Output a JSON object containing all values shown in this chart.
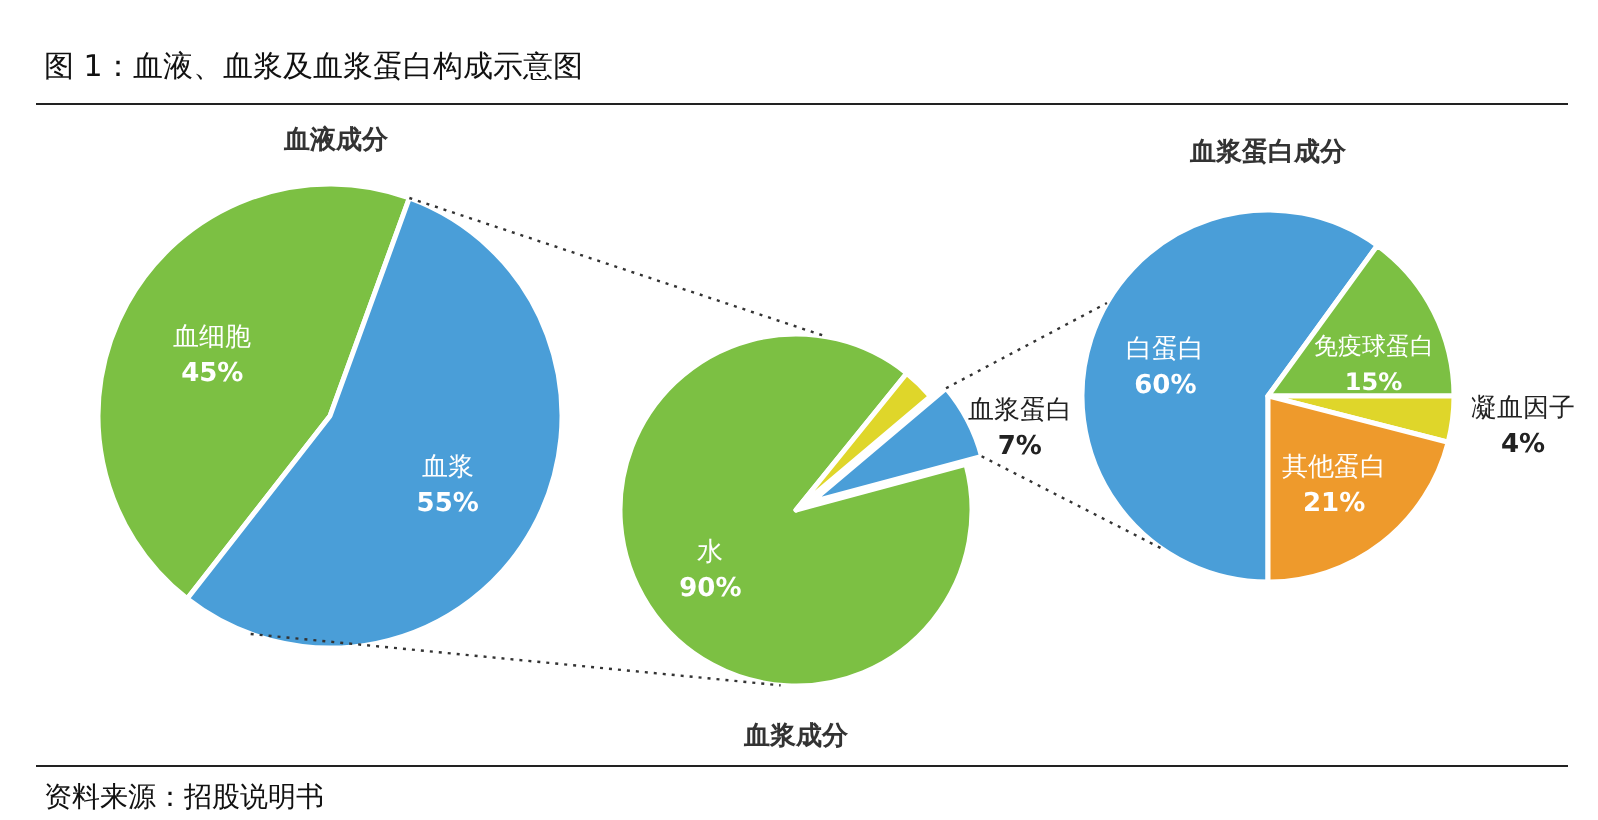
{
  "chart_data": [
    {
      "type": "other",
      "title": "图 1：血液、血浆及血浆蛋白构成示意图",
      "annotations": [
        "资料来源：招股说明书"
      ]
    },
    {
      "type": "pie",
      "title": "血液成分",
      "categories": [
        "血细胞",
        "血浆"
      ],
      "values": [
        45,
        55
      ],
      "value_labels": [
        "45%",
        "55%"
      ],
      "colors": [
        "#7cc043",
        "#4a9ed8"
      ]
    },
    {
      "type": "pie",
      "title": "血浆成分",
      "categories": [
        "水",
        null,
        "血浆蛋白"
      ],
      "values": [
        90,
        3,
        7
      ],
      "value_labels": [
        "90%",
        null,
        "7%"
      ],
      "colors": [
        "#7cc043",
        "#dfd62a",
        "#4a9ed8"
      ]
    },
    {
      "type": "pie",
      "title": "血浆蛋白成分",
      "categories": [
        "白蛋白",
        "免疫球蛋白",
        "凝血因子",
        "其他蛋白"
      ],
      "values": [
        60,
        15,
        4,
        21
      ],
      "value_labels": [
        "60%",
        "15%",
        "4%",
        "21%"
      ],
      "colors": [
        "#4a9ed8",
        "#7cc043",
        "#dfd62a",
        "#ee9a2c"
      ]
    }
  ]
}
